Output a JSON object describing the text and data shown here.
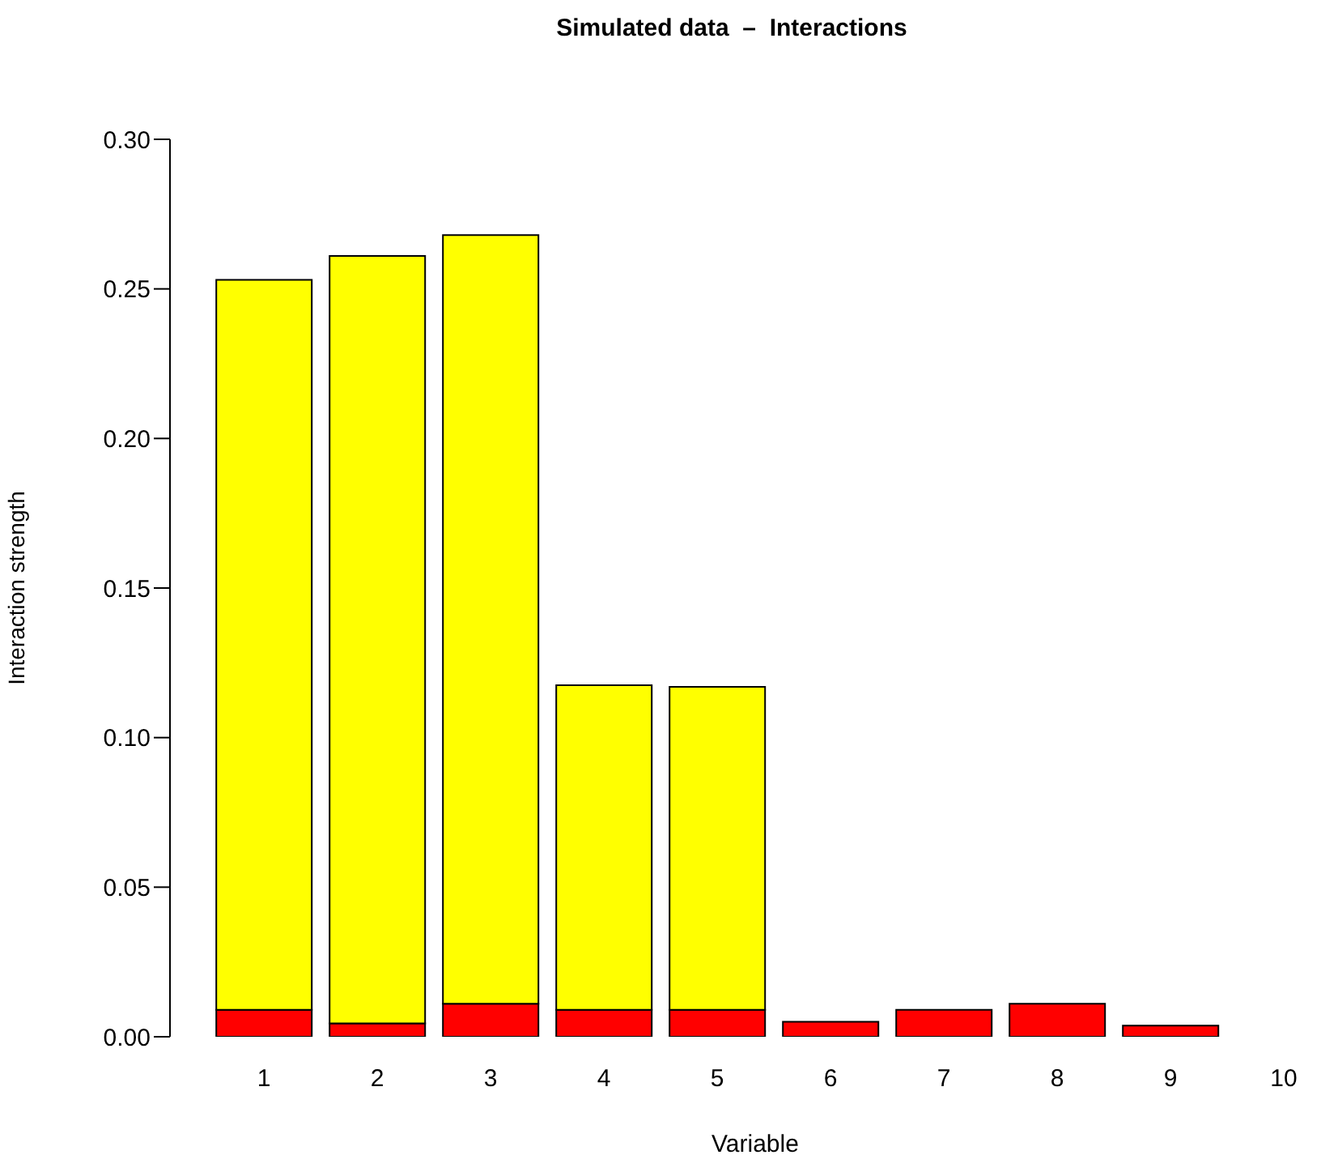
{
  "chart_data": {
    "type": "bar",
    "title": "Simulated data  –  Interactions",
    "xlabel": "Variable",
    "ylabel": "Interaction strength",
    "categories": [
      "1",
      "2",
      "3",
      "4",
      "5",
      "6",
      "7",
      "8",
      "9",
      "10"
    ],
    "stacked": true,
    "series": [
      {
        "color": "#ff0000",
        "values": [
          0.009,
          0.0045,
          0.011,
          0.009,
          0.009,
          0.005,
          0.009,
          0.011,
          0.0037,
          0
        ]
      },
      {
        "color": "#ffff00",
        "values": [
          0.244,
          0.2565,
          0.257,
          0.1085,
          0.108,
          null,
          null,
          null,
          null,
          null
        ]
      }
    ],
    "ylim": [
      0,
      0.3
    ],
    "yticks": [
      {
        "value": 0,
        "label": "0.00"
      },
      {
        "value": 0.05,
        "label": "0.05"
      },
      {
        "value": 0.1,
        "label": "0.10"
      },
      {
        "value": 0.15,
        "label": "0.15"
      },
      {
        "value": 0.2,
        "label": "0.20"
      },
      {
        "value": 0.25,
        "label": "0.25"
      },
      {
        "value": 0.3,
        "label": "0.30"
      }
    ]
  }
}
